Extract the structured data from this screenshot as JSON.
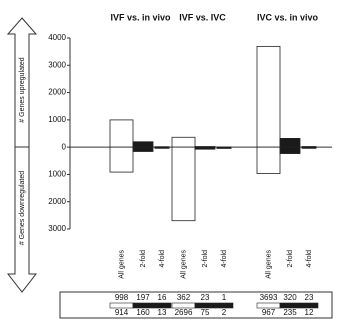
{
  "chart_data": {
    "type": "bar",
    "y_label_up": "# Genes upregulated",
    "y_label_down": "# Genes downregulated",
    "categories": [
      "All genes",
      "2-fold",
      "4-fold"
    ],
    "colors": [
      "#ffffff",
      "#1a1a1a",
      "#1a1a1a"
    ],
    "groups": [
      {
        "title": "IVF vs. in vivo",
        "up": [
          998,
          197,
          16
        ],
        "down": [
          914,
          160,
          13
        ]
      },
      {
        "title": "IVF vs. IVC",
        "up": [
          362,
          23,
          1
        ],
        "down": [
          2696,
          75,
          2
        ]
      },
      {
        "title": "IVC vs. in vivo",
        "up": [
          3693,
          320,
          23
        ],
        "down": [
          967,
          235,
          12
        ]
      }
    ],
    "ylim": [
      -3000,
      4000
    ],
    "yticks": [
      4000,
      3000,
      2000,
      1000,
      0,
      {
        "value": -1000,
        "label": "1000"
      },
      {
        "value": -2000,
        "label": "2000"
      },
      {
        "value": -3000,
        "label": "3000"
      }
    ]
  }
}
